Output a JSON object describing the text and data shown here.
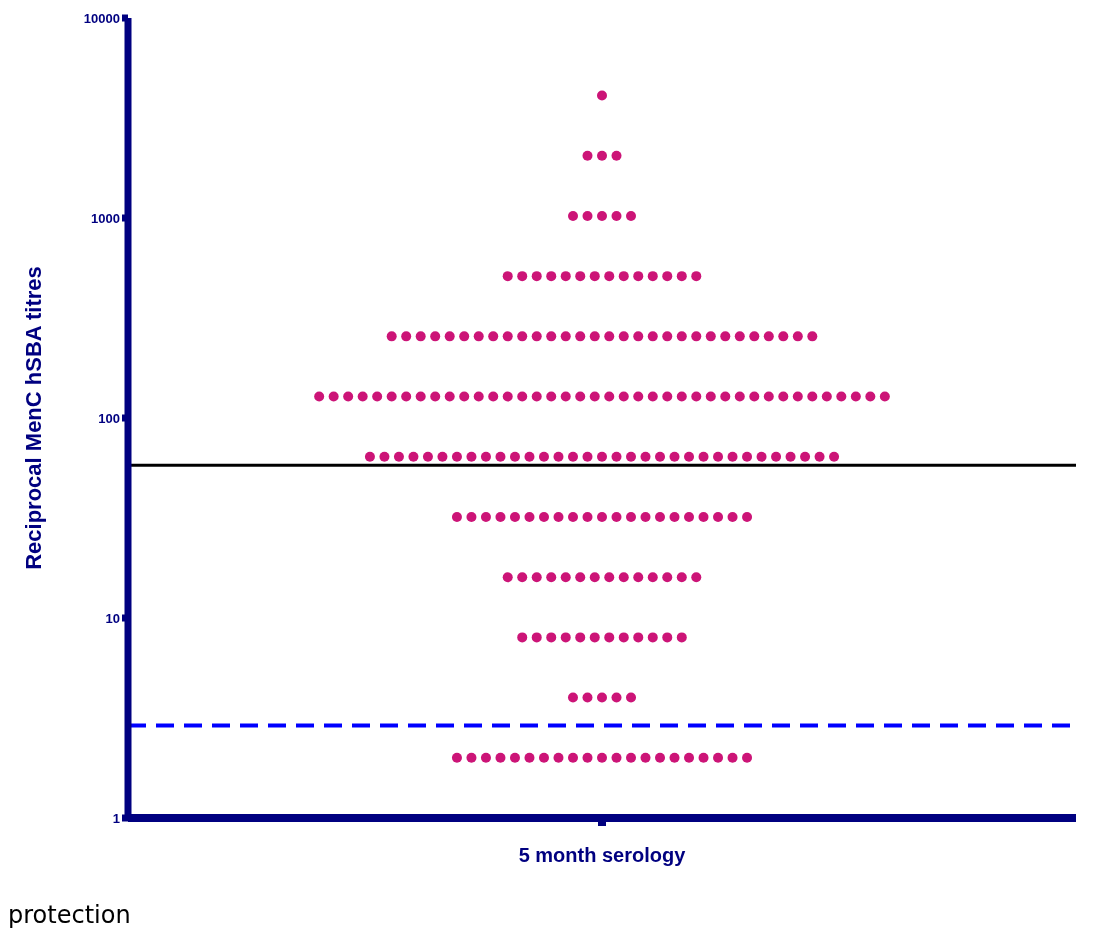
{
  "chart_data": {
    "type": "scatter",
    "ylabel": "Reciprocal MenC hSBA titres",
    "categories": [
      "5 month serology"
    ],
    "series": [
      {
        "color": "#cc1477",
        "x": [
          "5 month serology",
          "5 month serology",
          "5 month serology",
          "5 month serology",
          "5 month serology",
          "5 month serology",
          "5 month serology",
          "5 month serology",
          "5 month serology",
          "5 month serology",
          "5 month serology",
          "5 month serology",
          "5 month serology",
          "5 month serology",
          "5 month serology",
          "5 month serology",
          "5 month serology",
          "5 month serology",
          "5 month serology",
          "5 month serology",
          "5 month serology",
          "5 month serology",
          "5 month serology",
          "5 month serology",
          "5 month serology",
          "5 month serology",
          "5 month serology",
          "5 month serology",
          "5 month serology",
          "5 month serology",
          "5 month serology",
          "5 month serology",
          "5 month serology",
          "5 month serology",
          "5 month serology",
          "5 month serology",
          "5 month serology",
          "5 month serology",
          "5 month serology",
          "5 month serology",
          "5 month serology",
          "5 month serology",
          "5 month serology",
          "5 month serology",
          "5 month serology",
          "5 month serology",
          "5 month serology",
          "5 month serology",
          "5 month serology",
          "5 month serology",
          "5 month serology",
          "5 month serology",
          "5 month serology",
          "5 month serology",
          "5 month serology",
          "5 month serology",
          "5 month serology",
          "5 month serology",
          "5 month serology",
          "5 month serology",
          "5 month serology",
          "5 month serology",
          "5 month serology",
          "5 month serology",
          "5 month serology",
          "5 month serology",
          "5 month serology",
          "5 month serology",
          "5 month serology",
          "5 month serology",
          "5 month serology",
          "5 month serology",
          "5 month serology",
          "5 month serology",
          "5 month serology",
          "5 month serology",
          "5 month serology",
          "5 month serology",
          "5 month serology",
          "5 month serology",
          "5 month serology",
          "5 month serology",
          "5 month serology",
          "5 month serology",
          "5 month serology",
          "5 month serology",
          "5 month serology",
          "5 month serology",
          "5 month serology",
          "5 month serology",
          "5 month serology",
          "5 month serology",
          "5 month serology",
          "5 month serology",
          "5 month serology",
          "5 month serology",
          "5 month serology",
          "5 month serology",
          "5 month serology",
          "5 month serology",
          "5 month serology",
          "5 month serology",
          "5 month serology",
          "5 month serology",
          "5 month serology",
          "5 month serology",
          "5 month serology",
          "5 month serology",
          "5 month serology",
          "5 month serology",
          "5 month serology",
          "5 month serology",
          "5 month serology",
          "5 month serology",
          "5 month serology",
          "5 month serology",
          "5 month serology",
          "5 month serology",
          "5 month serology",
          "5 month serology",
          "5 month serology",
          "5 month serology",
          "5 month serology",
          "5 month serology",
          "5 month serology",
          "5 month serology",
          "5 month serology",
          "5 month serology",
          "5 month serology",
          "5 month serology",
          "5 month serology",
          "5 month serology",
          "5 month serology",
          "5 month serology",
          "5 month serology",
          "5 month serology",
          "5 month serology",
          "5 month serology",
          "5 month serology",
          "5 month serology",
          "5 month serology",
          "5 month serology",
          "5 month serology",
          "5 month serology",
          "5 month serology",
          "5 month serology",
          "5 month serology",
          "5 month serology",
          "5 month serology",
          "5 month serology",
          "5 month serology",
          "5 month serology",
          "5 month serology",
          "5 month serology",
          "5 month serology",
          "5 month serology",
          "5 month serology",
          "5 month serology",
          "5 month serology",
          "5 month serology",
          "5 month serology",
          "5 month serology",
          "5 month serology",
          "5 month serology",
          "5 month serology",
          "5 month serology",
          "5 month serology",
          "5 month serology",
          "5 month serology",
          "5 month serology",
          "5 month serology",
          "5 month serology",
          "5 month serology",
          "5 month serology",
          "5 month serology",
          "5 month serology",
          "5 month serology",
          "5 month serology",
          "5 month serology",
          "5 month serology",
          "5 month serology",
          "5 month serology",
          "5 month serology",
          "5 month serology",
          "5 month serology",
          "5 month serology",
          "5 month serology",
          "5 month serology",
          "5 month serology",
          "5 month serology",
          "5 month serology",
          "5 month serology",
          "5 month serology",
          "5 month serology",
          "5 month serology",
          "5 month serology",
          "5 month serology",
          "5 month serology",
          "5 month serology"
        ],
        "values": [
          4096,
          2048,
          2048,
          2048,
          1024,
          1024,
          1024,
          1024,
          1024,
          512,
          512,
          512,
          512,
          512,
          512,
          512,
          512,
          512,
          512,
          512,
          512,
          512,
          512,
          256,
          256,
          256,
          256,
          256,
          256,
          256,
          256,
          256,
          256,
          256,
          256,
          256,
          256,
          256,
          256,
          256,
          256,
          256,
          256,
          256,
          256,
          256,
          256,
          256,
          256,
          256,
          256,
          256,
          256,
          128,
          128,
          128,
          128,
          128,
          128,
          128,
          128,
          128,
          128,
          128,
          128,
          128,
          128,
          128,
          128,
          128,
          128,
          128,
          128,
          128,
          128,
          128,
          128,
          128,
          128,
          128,
          128,
          128,
          128,
          128,
          128,
          128,
          128,
          128,
          128,
          128,
          128,
          128,
          128,
          64,
          64,
          64,
          64,
          64,
          64,
          64,
          64,
          64,
          64,
          64,
          64,
          64,
          64,
          64,
          64,
          64,
          64,
          64,
          64,
          64,
          64,
          64,
          64,
          64,
          64,
          64,
          64,
          64,
          64,
          64,
          64,
          64,
          32,
          32,
          32,
          32,
          32,
          32,
          32,
          32,
          32,
          32,
          32,
          32,
          32,
          32,
          32,
          32,
          32,
          32,
          32,
          32,
          32,
          16,
          16,
          16,
          16,
          16,
          16,
          16,
          16,
          16,
          16,
          16,
          16,
          16,
          16,
          8,
          8,
          8,
          8,
          8,
          8,
          8,
          8,
          8,
          8,
          8,
          8,
          4,
          4,
          4,
          4,
          4,
          2,
          2,
          2,
          2,
          2,
          2,
          2,
          2,
          2,
          2,
          2,
          2,
          2,
          2,
          2,
          2,
          2,
          2,
          2,
          2,
          2
        ]
      }
    ],
    "ylim": [
      1,
      10000
    ],
    "yticks": [
      1,
      10,
      100,
      1000,
      10000
    ],
    "log": "y",
    "marker": "circle",
    "grid": false,
    "legend": false,
    "ref_lines": [
      {
        "axis": "y",
        "value": 58,
        "color": "#000000",
        "line_style": "solid"
      },
      {
        "axis": "y",
        "value": 2.9,
        "color": "#0000ff",
        "line_style": "dashed"
      }
    ],
    "annotations": [
      "protection"
    ]
  }
}
